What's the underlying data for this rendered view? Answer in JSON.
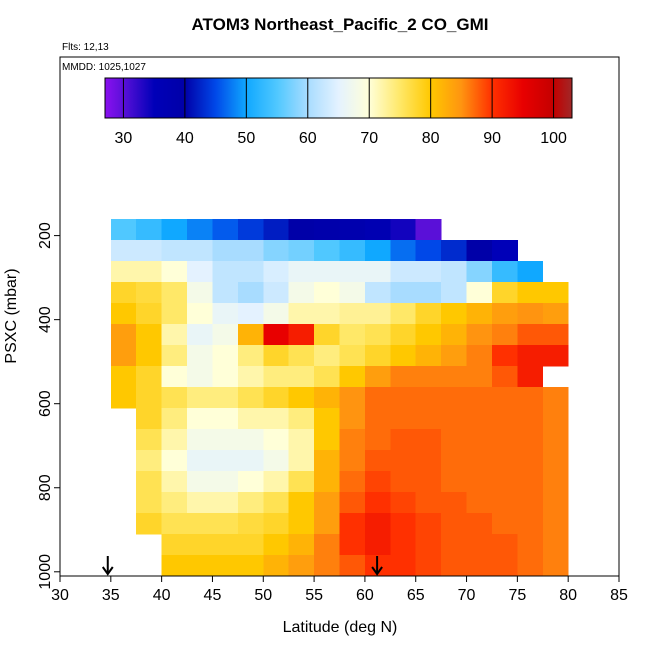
{
  "chart_data": {
    "type": "heatmap",
    "title": "ATOM3 Northeast_Pacific_2 CO_GMI",
    "subtitle": "Flts: 12,13",
    "annotation": "MMDD: 1025,1027",
    "xlabel": "Latitude (deg N)",
    "ylabel": "PSXC (mbar)",
    "xlim": [
      30,
      85
    ],
    "xticks": [
      30,
      35,
      40,
      45,
      50,
      55,
      60,
      65,
      70,
      75,
      80,
      85
    ],
    "ylim": [
      1010,
      -225
    ],
    "yticks": [
      200,
      400,
      600,
      800,
      1000
    ],
    "xbins": [
      35,
      37.5,
      40,
      42.5,
      45,
      47.5,
      50,
      52.5,
      55,
      57.5,
      60,
      62.5,
      65,
      67.5,
      70,
      72.5,
      75,
      77.5,
      80
    ],
    "ybins": [
      160,
      210,
      260,
      310,
      360,
      410,
      460,
      510,
      560,
      610,
      660,
      710,
      760,
      810,
      860,
      910,
      960,
      1010
    ],
    "values": [
      [
        55,
        53,
        50,
        48,
        46,
        44,
        42,
        40,
        39,
        38,
        37,
        34,
        30,
        null,
        null,
        null,
        null,
        null
      ],
      [
        63,
        63,
        62,
        62,
        60,
        60,
        58,
        57,
        55,
        53,
        50,
        47,
        45,
        43,
        40,
        35,
        null,
        null
      ],
      [
        72,
        72,
        70,
        65,
        62,
        62,
        64,
        66,
        66,
        66,
        66,
        63,
        63,
        62,
        58,
        53,
        50,
        null
      ],
      [
        78,
        77,
        75,
        68,
        62,
        60,
        63,
        68,
        70,
        68,
        62,
        60,
        60,
        62,
        70,
        78,
        80,
        80
      ],
      [
        80,
        78,
        75,
        70,
        66,
        65,
        68,
        72,
        72,
        73,
        73,
        75,
        78,
        80,
        82,
        84,
        85,
        84
      ],
      [
        84,
        80,
        72,
        66,
        68,
        82,
        95,
        92,
        78,
        75,
        76,
        78,
        80,
        82,
        85,
        86,
        88,
        88
      ],
      [
        84,
        80,
        74,
        68,
        70,
        74,
        78,
        76,
        74,
        76,
        78,
        80,
        82,
        84,
        86,
        90,
        92,
        92
      ],
      [
        80,
        78,
        70,
        68,
        70,
        72,
        74,
        74,
        76,
        80,
        84,
        86,
        86,
        86,
        86,
        88,
        92,
        null
      ],
      [
        80,
        78,
        76,
        74,
        74,
        76,
        78,
        80,
        82,
        85,
        87,
        87,
        87,
        87,
        87,
        87,
        87,
        86
      ],
      [
        null,
        78,
        74,
        70,
        70,
        72,
        72,
        74,
        80,
        85,
        87,
        87,
        87,
        87,
        87,
        87,
        87,
        86
      ],
      [
        null,
        76,
        72,
        68,
        68,
        68,
        70,
        72,
        80,
        86,
        87,
        88,
        88,
        87,
        87,
        87,
        87,
        86
      ],
      [
        null,
        74,
        70,
        66,
        66,
        66,
        68,
        72,
        82,
        86,
        88,
        88,
        88,
        87,
        87,
        87,
        87,
        86
      ],
      [
        null,
        76,
        72,
        68,
        68,
        70,
        72,
        76,
        82,
        87,
        89,
        88,
        88,
        87,
        87,
        87,
        87,
        86
      ],
      [
        null,
        76,
        74,
        72,
        72,
        74,
        76,
        80,
        84,
        88,
        90,
        89,
        88,
        88,
        87,
        87,
        87,
        86
      ],
      [
        null,
        78,
        76,
        76,
        76,
        77,
        78,
        80,
        84,
        90,
        92,
        90,
        89,
        88,
        88,
        87,
        87,
        86
      ],
      [
        null,
        null,
        78,
        78,
        78,
        78,
        80,
        82,
        86,
        90,
        92,
        90,
        89,
        88,
        88,
        88,
        87,
        86
      ],
      [
        null,
        null,
        80,
        80,
        80,
        80,
        82,
        84,
        86,
        88,
        90,
        90,
        89,
        88,
        88,
        88,
        87,
        86
      ]
    ],
    "markers_x": [
      34.7,
      61.2
    ],
    "clim": [
      27,
      103
    ],
    "cticks": [
      30,
      40,
      50,
      60,
      70,
      80,
      90,
      100
    ],
    "colorscale": [
      [
        27,
        "#8a10f0"
      ],
      [
        30,
        "#5a10d8"
      ],
      [
        35,
        "#0000b8"
      ],
      [
        40,
        "#0000a8"
      ],
      [
        45,
        "#0048e8"
      ],
      [
        50,
        "#10a8ff"
      ],
      [
        55,
        "#50c8ff"
      ],
      [
        60,
        "#a8dcff"
      ],
      [
        65,
        "#e4f2ff"
      ],
      [
        70,
        "#ffffd8"
      ],
      [
        75,
        "#ffe868"
      ],
      [
        80,
        "#ffc800"
      ],
      [
        85,
        "#ff9410"
      ],
      [
        90,
        "#ff3000"
      ],
      [
        95,
        "#e80000"
      ],
      [
        100,
        "#c40000"
      ],
      [
        103,
        "#a02828"
      ]
    ]
  }
}
